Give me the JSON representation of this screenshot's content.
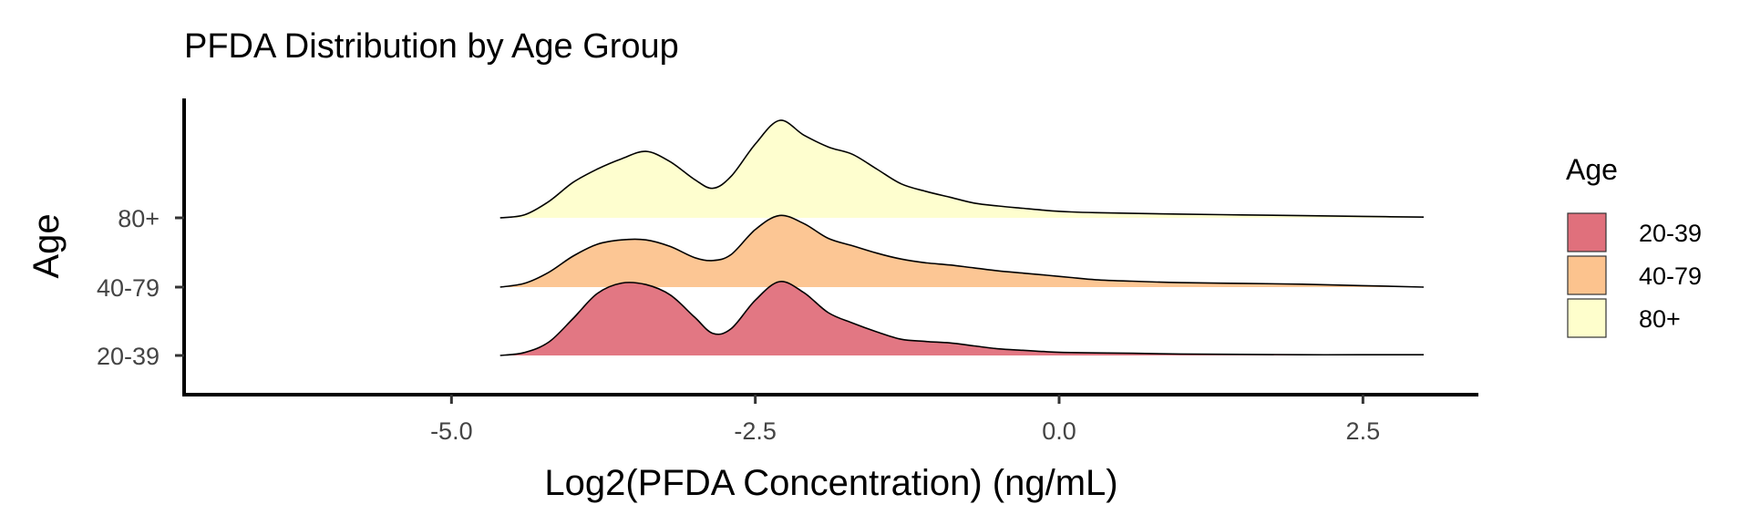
{
  "chart_data": {
    "type": "area",
    "subtype": "ridgeline",
    "title": "PFDA Distribution by Age Group",
    "xlabel": "Log2(PFDA Concentration) (ng/mL)",
    "ylabel": "Age",
    "xlim": [
      -7.2,
      3.45
    ],
    "x_ticks": [
      -5.0,
      -2.5,
      0.0,
      2.5
    ],
    "x_tick_labels": [
      "-5.0",
      "-2.5",
      "0.0",
      "2.5"
    ],
    "categories": [
      "20-39",
      "40-79",
      "80+"
    ],
    "legend_title": "Age",
    "legend_position": "right",
    "grid": false,
    "series": [
      {
        "name": "20-39",
        "color": "#E0707C",
        "x": [
          -4.6,
          -4.4,
          -4.2,
          -4.0,
          -3.8,
          -3.6,
          -3.4,
          -3.2,
          -3.0,
          -2.85,
          -2.7,
          -2.5,
          -2.3,
          -2.1,
          -1.9,
          -1.7,
          -1.5,
          -1.3,
          -1.1,
          -0.9,
          -0.7,
          -0.5,
          -0.3,
          -0.1,
          0.1,
          0.3,
          0.6,
          1.0,
          1.5,
          2.0,
          2.5,
          3.0
        ],
        "density": [
          0.0,
          0.04,
          0.18,
          0.5,
          0.84,
          0.98,
          0.96,
          0.82,
          0.52,
          0.3,
          0.36,
          0.75,
          1.0,
          0.85,
          0.58,
          0.44,
          0.32,
          0.22,
          0.19,
          0.17,
          0.13,
          0.09,
          0.07,
          0.05,
          0.04,
          0.035,
          0.03,
          0.02,
          0.015,
          0.01,
          0.01,
          0.01
        ]
      },
      {
        "name": "40-79",
        "color": "#FCC38E",
        "x": [
          -4.6,
          -4.4,
          -4.2,
          -4.0,
          -3.8,
          -3.6,
          -3.4,
          -3.2,
          -3.0,
          -2.85,
          -2.7,
          -2.5,
          -2.3,
          -2.1,
          -1.9,
          -1.7,
          -1.5,
          -1.3,
          -1.1,
          -0.9,
          -0.7,
          -0.5,
          -0.3,
          -0.1,
          0.1,
          0.3,
          0.6,
          1.0,
          1.5,
          2.0,
          2.5,
          3.0
        ],
        "density": [
          0.0,
          0.05,
          0.2,
          0.42,
          0.58,
          0.64,
          0.64,
          0.55,
          0.4,
          0.36,
          0.44,
          0.78,
          0.97,
          0.86,
          0.66,
          0.56,
          0.46,
          0.38,
          0.33,
          0.3,
          0.26,
          0.22,
          0.19,
          0.16,
          0.13,
          0.1,
          0.08,
          0.06,
          0.05,
          0.04,
          0.02,
          0.0
        ]
      },
      {
        "name": "80+",
        "color": "#FEFECC",
        "x": [
          -4.6,
          -4.4,
          -4.2,
          -4.0,
          -3.8,
          -3.6,
          -3.4,
          -3.2,
          -3.0,
          -2.85,
          -2.7,
          -2.5,
          -2.3,
          -2.1,
          -1.9,
          -1.7,
          -1.5,
          -1.3,
          -1.1,
          -0.9,
          -0.7,
          -0.5,
          -0.3,
          -0.1,
          0.1,
          0.3,
          0.6,
          1.0,
          1.5,
          2.0,
          2.5,
          3.0
        ],
        "density": [
          0.0,
          0.04,
          0.22,
          0.48,
          0.66,
          0.8,
          0.9,
          0.76,
          0.52,
          0.4,
          0.56,
          1.0,
          1.32,
          1.12,
          0.96,
          0.86,
          0.66,
          0.46,
          0.36,
          0.28,
          0.2,
          0.16,
          0.13,
          0.1,
          0.08,
          0.07,
          0.06,
          0.05,
          0.04,
          0.03,
          0.02,
          0.01
        ]
      }
    ]
  }
}
